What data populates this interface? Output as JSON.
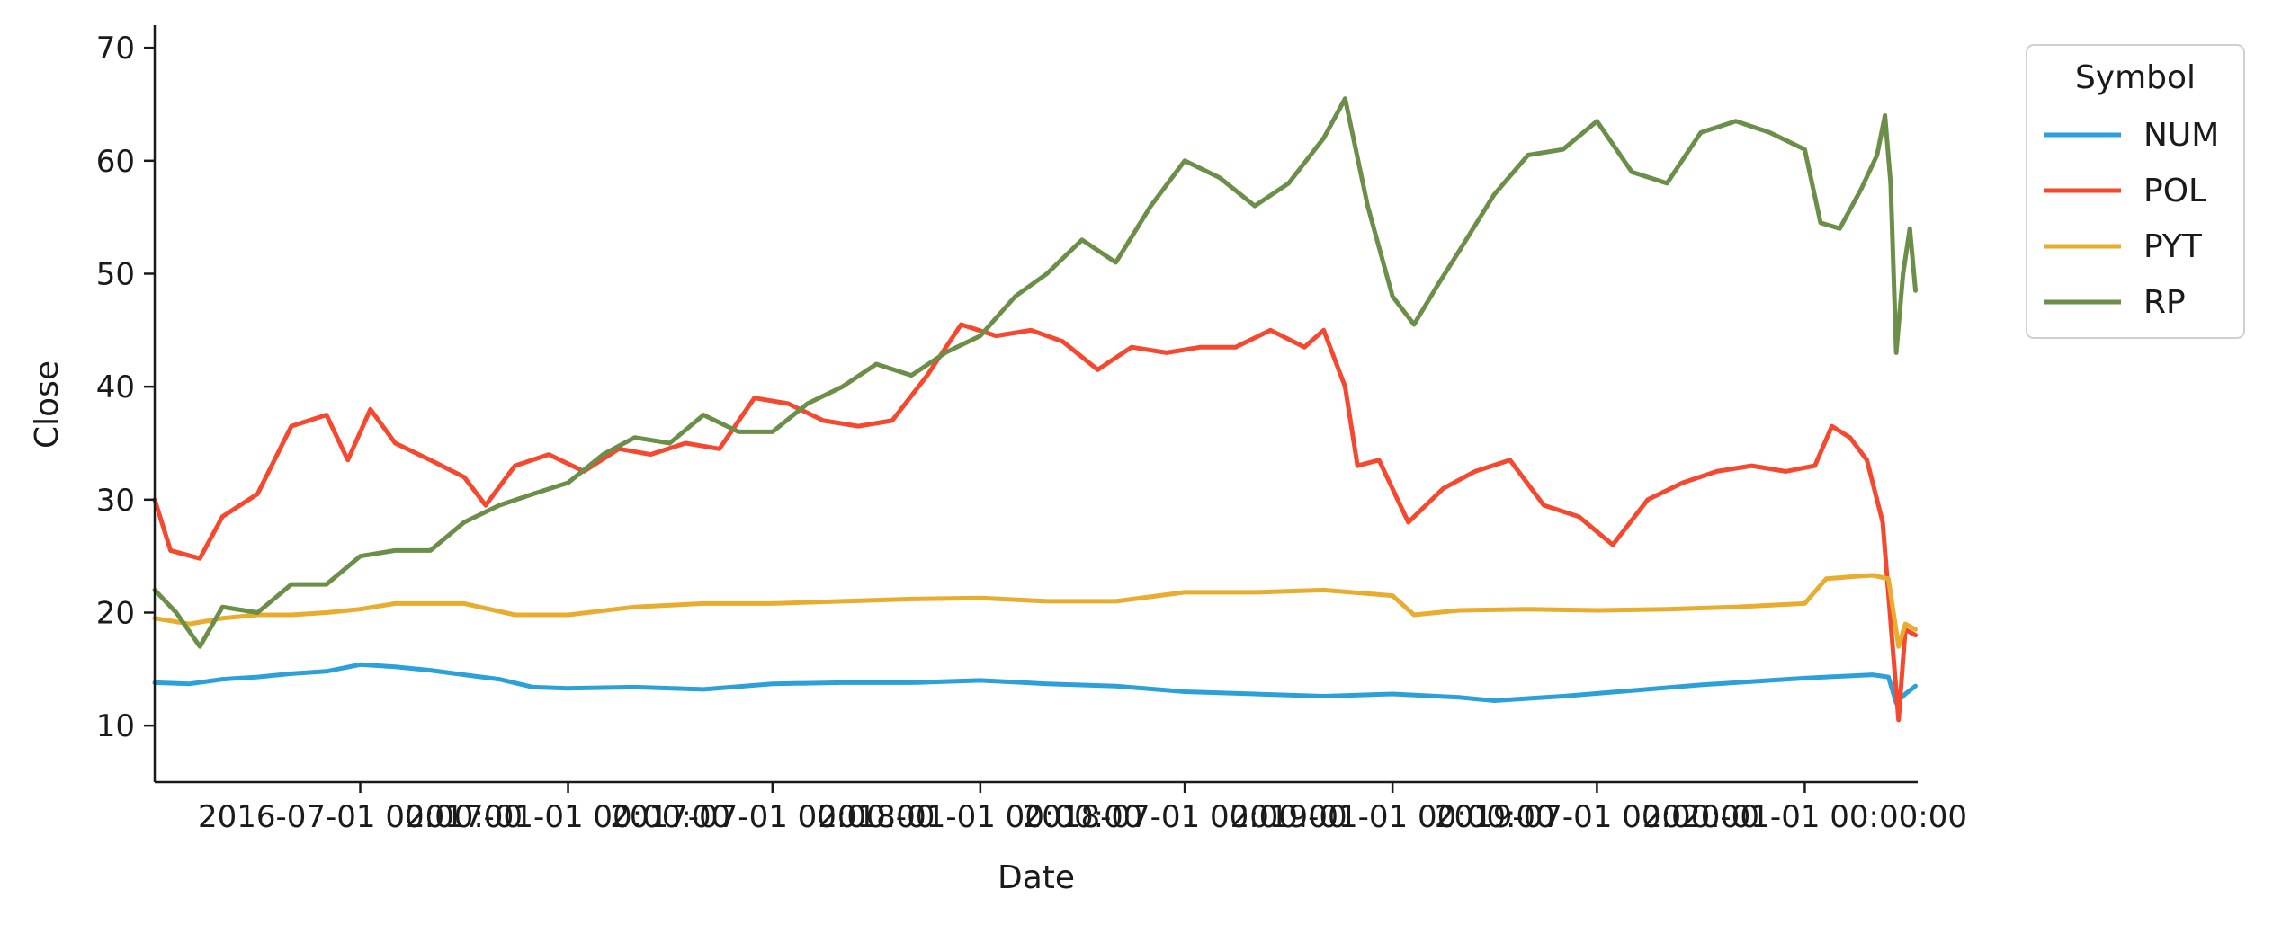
{
  "chart_data": {
    "type": "line",
    "xlabel": "Date",
    "ylabel": "Close",
    "xlim": [
      "2016-01-01",
      "2020-04-10"
    ],
    "ylim": [
      5,
      72
    ],
    "y_ticks": [
      10,
      20,
      30,
      40,
      50,
      60,
      70
    ],
    "x_ticks": [
      {
        "date": "2016-07-01",
        "label": "2016-07-01 00:00:00"
      },
      {
        "date": "2017-01-01",
        "label": "2017-01-01 00:00:00"
      },
      {
        "date": "2017-07-01",
        "label": "2017-07-01 00:00:00"
      },
      {
        "date": "2018-01-01",
        "label": "2018-01-01 00:00:00"
      },
      {
        "date": "2018-07-01",
        "label": "2018-07-01 00:00:00"
      },
      {
        "date": "2019-01-01",
        "label": "2019-01-01 00:00:00"
      },
      {
        "date": "2019-07-01",
        "label": "2019-07-01 00:00:00"
      },
      {
        "date": "2020-01-01",
        "label": "2020-01-01 00:00:00"
      }
    ],
    "grid": false,
    "legend": {
      "title": "Symbol",
      "position": "upper-right-outside"
    },
    "series": [
      {
        "name": "NUM",
        "color": "#2ca0d8",
        "points": [
          [
            "2016-01-01",
            13.8
          ],
          [
            "2016-02-01",
            13.7
          ],
          [
            "2016-03-01",
            14.1
          ],
          [
            "2016-04-01",
            14.3
          ],
          [
            "2016-05-01",
            14.6
          ],
          [
            "2016-06-01",
            14.8
          ],
          [
            "2016-07-01",
            15.4
          ],
          [
            "2016-08-01",
            15.2
          ],
          [
            "2016-09-01",
            14.9
          ],
          [
            "2016-10-01",
            14.5
          ],
          [
            "2016-11-01",
            14.1
          ],
          [
            "2016-12-01",
            13.4
          ],
          [
            "2017-01-01",
            13.3
          ],
          [
            "2017-03-01",
            13.4
          ],
          [
            "2017-05-01",
            13.2
          ],
          [
            "2017-07-01",
            13.7
          ],
          [
            "2017-09-01",
            13.8
          ],
          [
            "2017-11-01",
            13.8
          ],
          [
            "2018-01-01",
            14.0
          ],
          [
            "2018-03-01",
            13.7
          ],
          [
            "2018-05-01",
            13.5
          ],
          [
            "2018-07-01",
            13.0
          ],
          [
            "2018-09-01",
            12.8
          ],
          [
            "2018-11-01",
            12.6
          ],
          [
            "2019-01-01",
            12.8
          ],
          [
            "2019-03-01",
            12.5
          ],
          [
            "2019-04-01",
            12.2
          ],
          [
            "2019-05-01",
            12.4
          ],
          [
            "2019-06-01",
            12.6
          ],
          [
            "2019-08-01",
            13.1
          ],
          [
            "2019-10-01",
            13.6
          ],
          [
            "2019-12-01",
            14.0
          ],
          [
            "2020-01-01",
            14.2
          ],
          [
            "2020-01-20",
            14.3
          ],
          [
            "2020-02-10",
            14.4
          ],
          [
            "2020-03-01",
            14.5
          ],
          [
            "2020-03-15",
            14.3
          ],
          [
            "2020-03-22",
            12.0
          ],
          [
            "2020-03-30",
            12.8
          ],
          [
            "2020-04-08",
            13.5
          ]
        ]
      },
      {
        "name": "POL",
        "color": "#f5492f",
        "points": [
          [
            "2016-01-01",
            30.0
          ],
          [
            "2016-01-15",
            25.5
          ],
          [
            "2016-02-10",
            24.8
          ],
          [
            "2016-03-01",
            28.5
          ],
          [
            "2016-04-01",
            30.5
          ],
          [
            "2016-05-01",
            36.5
          ],
          [
            "2016-06-01",
            37.5
          ],
          [
            "2016-06-20",
            33.5
          ],
          [
            "2016-07-10",
            38.0
          ],
          [
            "2016-08-01",
            35.0
          ],
          [
            "2016-09-01",
            33.5
          ],
          [
            "2016-10-01",
            32.0
          ],
          [
            "2016-10-20",
            29.5
          ],
          [
            "2016-11-15",
            33.0
          ],
          [
            "2016-12-15",
            34.0
          ],
          [
            "2017-01-15",
            32.5
          ],
          [
            "2017-02-15",
            34.5
          ],
          [
            "2017-03-15",
            34.0
          ],
          [
            "2017-04-15",
            35.0
          ],
          [
            "2017-05-15",
            34.5
          ],
          [
            "2017-06-15",
            39.0
          ],
          [
            "2017-07-15",
            38.5
          ],
          [
            "2017-08-15",
            37.0
          ],
          [
            "2017-09-15",
            36.5
          ],
          [
            "2017-10-15",
            37.0
          ],
          [
            "2017-11-15",
            41.0
          ],
          [
            "2017-12-15",
            45.5
          ],
          [
            "2018-01-15",
            44.5
          ],
          [
            "2018-02-15",
            45.0
          ],
          [
            "2018-03-15",
            44.0
          ],
          [
            "2018-04-15",
            41.5
          ],
          [
            "2018-05-15",
            43.5
          ],
          [
            "2018-06-15",
            43.0
          ],
          [
            "2018-07-15",
            43.5
          ],
          [
            "2018-08-15",
            43.5
          ],
          [
            "2018-09-15",
            45.0
          ],
          [
            "2018-10-15",
            43.5
          ],
          [
            "2018-11-01",
            45.0
          ],
          [
            "2018-11-20",
            40.0
          ],
          [
            "2018-12-01",
            33.0
          ],
          [
            "2018-12-20",
            33.5
          ],
          [
            "2019-01-15",
            28.0
          ],
          [
            "2019-02-15",
            31.0
          ],
          [
            "2019-03-15",
            32.5
          ],
          [
            "2019-04-15",
            33.5
          ],
          [
            "2019-05-15",
            29.5
          ],
          [
            "2019-06-15",
            28.5
          ],
          [
            "2019-07-15",
            26.0
          ],
          [
            "2019-08-15",
            30.0
          ],
          [
            "2019-09-15",
            31.5
          ],
          [
            "2019-10-15",
            32.5
          ],
          [
            "2019-11-15",
            33.0
          ],
          [
            "2019-12-15",
            32.5
          ],
          [
            "2020-01-10",
            33.0
          ],
          [
            "2020-01-25",
            36.5
          ],
          [
            "2020-02-10",
            35.5
          ],
          [
            "2020-02-25",
            33.5
          ],
          [
            "2020-03-10",
            28.0
          ],
          [
            "2020-03-18",
            18.0
          ],
          [
            "2020-03-24",
            10.5
          ],
          [
            "2020-03-30",
            18.5
          ],
          [
            "2020-04-08",
            18.0
          ]
        ]
      },
      {
        "name": "PYT",
        "color": "#e8ac2e",
        "points": [
          [
            "2016-01-01",
            19.5
          ],
          [
            "2016-02-01",
            19.0
          ],
          [
            "2016-03-01",
            19.5
          ],
          [
            "2016-04-01",
            19.8
          ],
          [
            "2016-05-01",
            19.8
          ],
          [
            "2016-06-01",
            20.0
          ],
          [
            "2016-07-01",
            20.3
          ],
          [
            "2016-08-01",
            20.8
          ],
          [
            "2016-10-01",
            20.8
          ],
          [
            "2016-11-15",
            19.8
          ],
          [
            "2017-01-01",
            19.8
          ],
          [
            "2017-03-01",
            20.5
          ],
          [
            "2017-05-01",
            20.8
          ],
          [
            "2017-07-01",
            20.8
          ],
          [
            "2017-09-01",
            21.0
          ],
          [
            "2017-11-01",
            21.2
          ],
          [
            "2018-01-01",
            21.3
          ],
          [
            "2018-03-01",
            21.0
          ],
          [
            "2018-05-01",
            21.0
          ],
          [
            "2018-07-01",
            21.8
          ],
          [
            "2018-09-01",
            21.8
          ],
          [
            "2018-11-01",
            22.0
          ],
          [
            "2019-01-01",
            21.5
          ],
          [
            "2019-01-20",
            19.8
          ],
          [
            "2019-03-01",
            20.2
          ],
          [
            "2019-05-01",
            20.3
          ],
          [
            "2019-07-01",
            20.2
          ],
          [
            "2019-09-01",
            20.3
          ],
          [
            "2019-11-01",
            20.5
          ],
          [
            "2020-01-01",
            20.8
          ],
          [
            "2020-01-20",
            23.0
          ],
          [
            "2020-02-15",
            23.2
          ],
          [
            "2020-03-01",
            23.3
          ],
          [
            "2020-03-15",
            23.0
          ],
          [
            "2020-03-24",
            17.0
          ],
          [
            "2020-03-30",
            19.0
          ],
          [
            "2020-04-08",
            18.5
          ]
        ]
      },
      {
        "name": "RP",
        "color": "#6b8e48",
        "points": [
          [
            "2016-01-01",
            22.0
          ],
          [
            "2016-01-20",
            20.0
          ],
          [
            "2016-02-10",
            17.0
          ],
          [
            "2016-03-01",
            20.5
          ],
          [
            "2016-04-01",
            20.0
          ],
          [
            "2016-05-01",
            22.5
          ],
          [
            "2016-06-01",
            22.5
          ],
          [
            "2016-07-01",
            25.0
          ],
          [
            "2016-08-01",
            25.5
          ],
          [
            "2016-09-01",
            25.5
          ],
          [
            "2016-10-01",
            28.0
          ],
          [
            "2016-11-01",
            29.5
          ],
          [
            "2016-12-01",
            30.5
          ],
          [
            "2017-01-01",
            31.5
          ],
          [
            "2017-02-01",
            34.0
          ],
          [
            "2017-03-01",
            35.5
          ],
          [
            "2017-04-01",
            35.0
          ],
          [
            "2017-05-01",
            37.5
          ],
          [
            "2017-06-01",
            36.0
          ],
          [
            "2017-07-01",
            36.0
          ],
          [
            "2017-08-01",
            38.5
          ],
          [
            "2017-09-01",
            40.0
          ],
          [
            "2017-10-01",
            42.0
          ],
          [
            "2017-11-01",
            41.0
          ],
          [
            "2017-12-01",
            43.0
          ],
          [
            "2018-01-01",
            44.5
          ],
          [
            "2018-02-01",
            48.0
          ],
          [
            "2018-03-01",
            50.0
          ],
          [
            "2018-04-01",
            53.0
          ],
          [
            "2018-05-01",
            51.0
          ],
          [
            "2018-06-01",
            56.0
          ],
          [
            "2018-07-01",
            60.0
          ],
          [
            "2018-08-01",
            58.5
          ],
          [
            "2018-09-01",
            56.0
          ],
          [
            "2018-10-01",
            58.0
          ],
          [
            "2018-11-01",
            62.0
          ],
          [
            "2018-11-20",
            65.5
          ],
          [
            "2018-12-10",
            56.0
          ],
          [
            "2019-01-01",
            48.0
          ],
          [
            "2019-01-20",
            45.5
          ],
          [
            "2019-02-10",
            49.0
          ],
          [
            "2019-03-01",
            52.0
          ],
          [
            "2019-04-01",
            57.0
          ],
          [
            "2019-05-01",
            60.5
          ],
          [
            "2019-06-01",
            61.0
          ],
          [
            "2019-07-01",
            63.5
          ],
          [
            "2019-08-01",
            59.0
          ],
          [
            "2019-09-01",
            58.0
          ],
          [
            "2019-10-01",
            62.5
          ],
          [
            "2019-11-01",
            63.5
          ],
          [
            "2019-12-01",
            62.5
          ],
          [
            "2020-01-01",
            61.0
          ],
          [
            "2020-01-15",
            54.5
          ],
          [
            "2020-02-01",
            54.0
          ],
          [
            "2020-02-20",
            57.5
          ],
          [
            "2020-03-05",
            60.5
          ],
          [
            "2020-03-12",
            64.0
          ],
          [
            "2020-03-17",
            58.0
          ],
          [
            "2020-03-22",
            43.0
          ],
          [
            "2020-03-28",
            50.0
          ],
          [
            "2020-04-03",
            54.0
          ],
          [
            "2020-04-08",
            48.5
          ]
        ]
      }
    ]
  }
}
